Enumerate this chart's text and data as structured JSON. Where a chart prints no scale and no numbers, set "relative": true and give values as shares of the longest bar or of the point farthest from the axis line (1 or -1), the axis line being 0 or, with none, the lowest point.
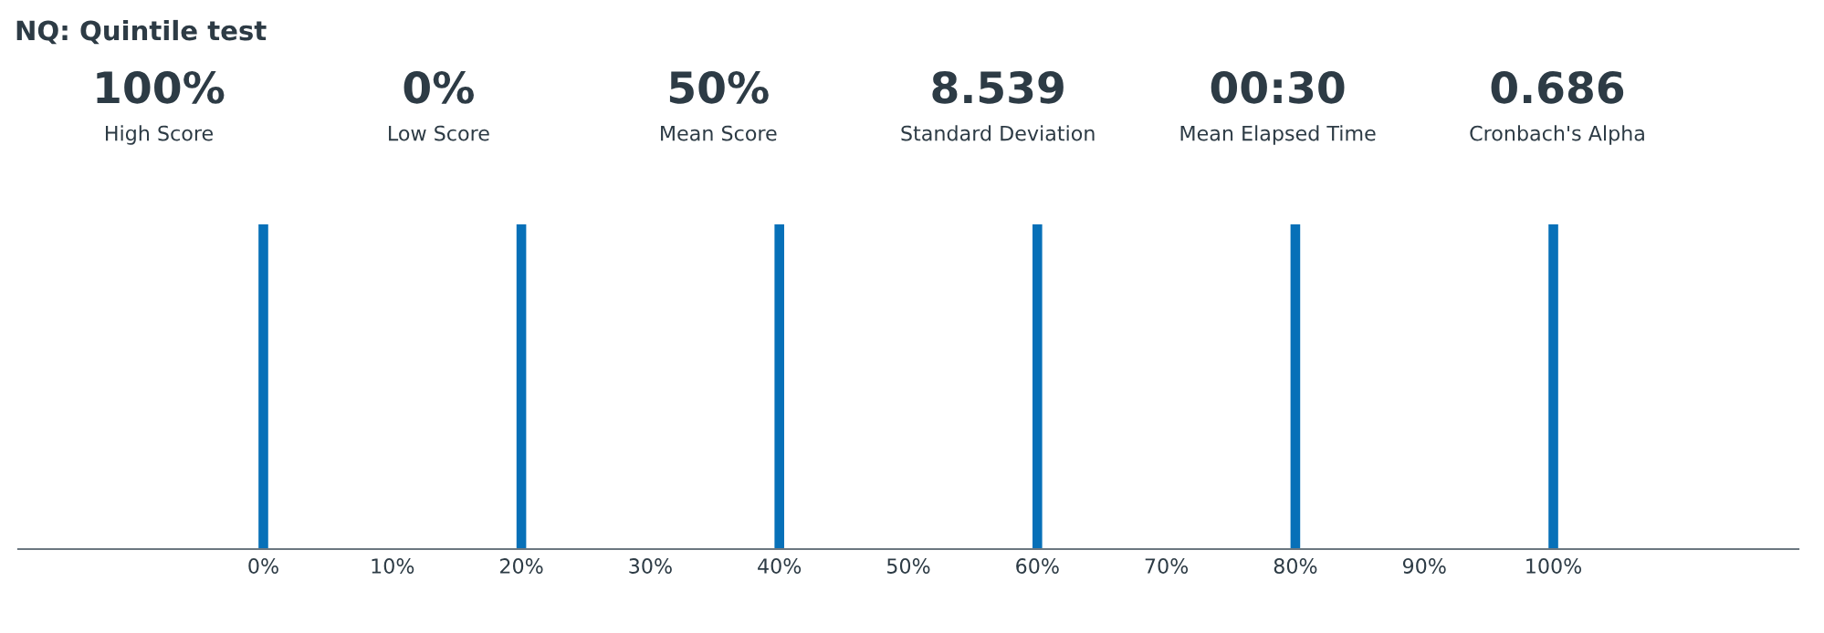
{
  "chart_data": {
    "type": "bar",
    "title": "NQ: Quintile test",
    "annotations": [
      "100%",
      "High Score",
      "0%",
      "Low Score",
      "50%",
      "Mean Score",
      "8.539",
      "Standard Deviation",
      "00:30",
      "Mean Elapsed Time",
      "0.686",
      "Cronbach's Alpha"
    ],
    "x": [
      0,
      20,
      40,
      60,
      80,
      100
    ],
    "values": [
      1,
      1,
      1,
      1,
      1,
      1
    ],
    "color": "#0770b8",
    "relative": true,
    "xlim": [
      -19,
      119
    ],
    "xticks": [
      {
        "value": 0,
        "label": "0%"
      },
      {
        "value": 10,
        "label": "10%"
      },
      {
        "value": 20,
        "label": "20%"
      },
      {
        "value": 30,
        "label": "30%"
      },
      {
        "value": 40,
        "label": "40%"
      },
      {
        "value": 50,
        "label": "50%"
      },
      {
        "value": 60,
        "label": "60%"
      },
      {
        "value": 70,
        "label": "70%"
      },
      {
        "value": 80,
        "label": "80%"
      },
      {
        "value": 90,
        "label": "90%"
      },
      {
        "value": 100,
        "label": "100%"
      }
    ],
    "tick_labels": "x",
    "grid": false
  }
}
